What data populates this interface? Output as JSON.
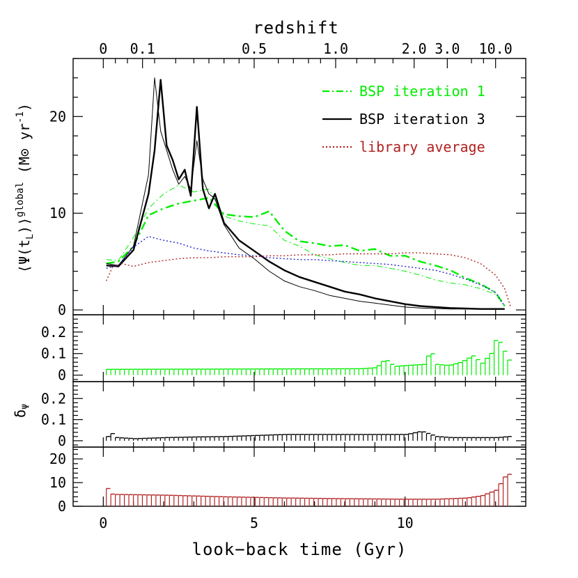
{
  "chart_data": {
    "type": "line",
    "top_axis": {
      "title": "redshift",
      "tick_labels": [
        "0",
        "0.1",
        "0.5",
        "1.0",
        "2.0",
        "3.0",
        "10.0"
      ],
      "tick_times_gyr": [
        0,
        1.3,
        5.0,
        7.7,
        10.3,
        11.4,
        13.0
      ]
    },
    "xlabel": "look−back time (Gyr)",
    "xlim": [
      -1.0,
      14.0
    ],
    "x_ticks": [
      0,
      5,
      10
    ],
    "x_tick_labels": [
      "0",
      "5",
      "10"
    ],
    "panels": [
      {
        "id": "main",
        "ylabel": "⟨Ψ(t_L)⟩^global  (M⊙ yr⁻¹)",
        "ylim": [
          -0.5,
          26
        ],
        "y_ticks": [
          0,
          10,
          20
        ],
        "y_tick_labels": [
          "0",
          "10",
          "20"
        ],
        "legend": {
          "position": "top-right",
          "entries": [
            {
              "label": "BSP iteration 1",
              "color": "#00ee00",
              "style": "dash-dot"
            },
            {
              "label": "BSP iteration 3",
              "color": "#000000",
              "style": "solid"
            },
            {
              "label": "library average",
              "color": "#b22222",
              "style": "dotted"
            }
          ]
        },
        "series": [
          {
            "name": "BSP iteration 1",
            "color": "#00ee00",
            "style": "dashdot",
            "width": 2.4,
            "x": [
              0.1,
              0.5,
              1.0,
              1.5,
              2.0,
              2.5,
              3.0,
              3.5,
              4.0,
              4.5,
              5.0,
              5.5,
              6.0,
              6.5,
              7.0,
              7.5,
              8.0,
              8.5,
              9.0,
              9.5,
              10.0,
              10.5,
              11.0,
              11.5,
              12.0,
              12.5,
              13.0,
              13.3
            ],
            "y": [
              4.8,
              5.0,
              6.6,
              9.8,
              10.5,
              11.0,
              11.3,
              11.6,
              9.9,
              9.7,
              9.6,
              10.2,
              8.2,
              7.1,
              6.9,
              6.6,
              6.7,
              6.1,
              6.3,
              5.6,
              5.6,
              5.0,
              4.6,
              4.1,
              3.3,
              2.7,
              1.8,
              0.4
            ]
          },
          {
            "name": "BSP iteration 1 (thin)",
            "color": "#00ee00",
            "style": "dashdot",
            "width": 1.0,
            "x": [
              0.1,
              0.5,
              1.0,
              1.5,
              2.0,
              2.5,
              3.0,
              3.5,
              4.0,
              4.5,
              5.0,
              5.5,
              6.0,
              6.5,
              7.0,
              7.5,
              8.0,
              8.5,
              9.0,
              9.5,
              10.0,
              10.5,
              11.0,
              11.5,
              12.0,
              12.5,
              13.0,
              13.3
            ],
            "y": [
              5.2,
              5.1,
              7.5,
              10.5,
              12.0,
              12.9,
              12.2,
              12.5,
              9.7,
              9.2,
              8.9,
              8.7,
              7.2,
              6.6,
              5.7,
              5.3,
              4.9,
              4.6,
              4.6,
              4.3,
              4.0,
              3.6,
              3.1,
              2.8,
              2.6,
              2.2,
              1.6,
              0.4
            ]
          },
          {
            "name": "BSP iteration 3",
            "color": "#000000",
            "style": "solid",
            "width": 2.4,
            "x": [
              0.1,
              0.5,
              1.0,
              1.5,
              1.7,
              1.9,
              2.1,
              2.3,
              2.5,
              2.7,
              2.9,
              3.1,
              3.3,
              3.5,
              3.7,
              4.0,
              4.5,
              5.0,
              5.5,
              6.0,
              6.5,
              7.0,
              7.5,
              8.0,
              8.5,
              9.0,
              9.5,
              10.0,
              10.5,
              11.0,
              11.5,
              12.0,
              12.5,
              13.0,
              13.3
            ],
            "y": [
              4.6,
              4.5,
              6.2,
              12.0,
              16.5,
              23.8,
              17.0,
              15.5,
              13.5,
              14.5,
              11.8,
              21.0,
              12.5,
              10.5,
              12.0,
              9.0,
              7.2,
              6.1,
              5.0,
              4.1,
              3.4,
              2.9,
              2.4,
              1.9,
              1.6,
              1.2,
              0.9,
              0.6,
              0.4,
              0.3,
              0.2,
              0.15,
              0.1,
              0.1,
              0.1
            ]
          },
          {
            "name": "BSP iteration 3 (thin)",
            "color": "#000000",
            "style": "solid",
            "width": 1.0,
            "x": [
              0.1,
              0.5,
              1.0,
              1.5,
              1.7,
              1.9,
              2.1,
              2.3,
              2.5,
              2.7,
              2.9,
              3.1,
              3.3,
              3.5,
              3.7,
              4.0,
              4.5,
              5.0,
              5.5,
              6.0,
              6.5,
              7.0,
              7.5,
              8.0,
              8.5,
              9.0,
              9.5,
              10.0,
              10.5,
              11.0,
              11.5,
              12.0,
              12.5,
              13.0,
              13.3
            ],
            "y": [
              4.8,
              4.6,
              6.6,
              14.0,
              24.0,
              18.5,
              16.5,
              14.5,
              13.0,
              13.8,
              12.5,
              17.5,
              13.5,
              12.0,
              11.5,
              8.8,
              6.4,
              5.3,
              4.0,
              3.0,
              2.4,
              2.0,
              1.5,
              1.2,
              0.9,
              0.7,
              0.5,
              0.3,
              0.2,
              0.15,
              0.1,
              0.1,
              0.1,
              0.1,
              0.1
            ]
          },
          {
            "name": "blue average",
            "color": "#2222cc",
            "style": "dotted",
            "width": 1.4,
            "x": [
              0.1,
              0.5,
              1.0,
              1.5,
              2.0,
              2.5,
              3.0,
              3.5,
              4.0,
              4.5,
              5.0,
              5.5,
              6.0,
              6.5,
              7.0,
              7.5,
              8.0,
              8.5,
              9.0,
              9.5,
              10.0,
              10.5,
              11.0,
              11.5,
              12.0,
              12.5,
              13.0,
              13.3
            ],
            "y": [
              4.3,
              4.6,
              6.5,
              7.6,
              7.2,
              6.9,
              6.4,
              6.1,
              5.9,
              5.7,
              5.6,
              5.4,
              5.3,
              5.2,
              5.2,
              5.1,
              5.0,
              4.9,
              4.8,
              4.7,
              4.5,
              4.3,
              4.1,
              3.7,
              3.2,
              2.6,
              1.8,
              0.4
            ]
          },
          {
            "name": "library average",
            "color": "#b22222",
            "style": "dotted",
            "width": 1.4,
            "x": [
              0.1,
              0.3,
              0.6,
              1.0,
              1.5,
              2.0,
              2.5,
              3.0,
              3.5,
              4.0,
              4.5,
              5.0,
              5.5,
              6.0,
              6.5,
              7.0,
              7.5,
              8.0,
              8.5,
              9.0,
              9.5,
              10.0,
              10.5,
              11.0,
              11.5,
              12.0,
              12.5,
              13.0,
              13.3,
              13.5
            ],
            "y": [
              3.0,
              4.4,
              4.8,
              4.5,
              4.9,
              5.1,
              5.3,
              5.4,
              5.4,
              5.5,
              5.5,
              5.5,
              5.6,
              5.6,
              5.7,
              5.7,
              5.7,
              5.8,
              5.8,
              5.8,
              5.8,
              5.9,
              5.9,
              5.8,
              5.7,
              5.4,
              4.8,
              3.6,
              2.2,
              0.3
            ]
          }
        ]
      },
      {
        "id": "green-errors",
        "ylim": [
          -0.03,
          0.28
        ],
        "y_ticks": [
          0,
          0.1,
          0.2
        ],
        "y_tick_labels": [
          "0",
          "0.1",
          "0.2"
        ],
        "color": "#00ee00",
        "x_range": [
          0.1,
          13.4
        ],
        "count": 90,
        "knots_x": [
          0.1,
          8.5,
          9.0,
          9.3,
          9.6,
          10.0,
          10.6,
          10.8,
          11.0,
          11.4,
          11.8,
          12.2,
          12.5,
          12.8,
          13.0,
          13.4
        ],
        "knots_y": [
          0.027,
          0.03,
          0.035,
          0.075,
          0.04,
          0.045,
          0.05,
          0.12,
          0.05,
          0.045,
          0.06,
          0.09,
          0.055,
          0.1,
          0.18,
          0.07
        ]
      },
      {
        "id": "black-errors",
        "ylabel": "δΨ",
        "ylim": [
          -0.03,
          0.28
        ],
        "y_ticks": [
          0,
          0.1,
          0.2
        ],
        "y_tick_labels": [
          "0",
          "0.1",
          "0.2"
        ],
        "color": "#000000",
        "x_range": [
          0.1,
          13.4
        ],
        "count": 90,
        "knots_x": [
          0.1,
          0.2,
          0.4,
          1.0,
          2.0,
          3.0,
          4.0,
          5.0,
          6.0,
          7.0,
          8.0,
          9.0,
          10.0,
          10.5,
          11.0,
          11.5,
          12.0,
          13.0,
          13.4
        ],
        "knots_y": [
          0.02,
          0.04,
          0.015,
          0.01,
          0.015,
          0.018,
          0.02,
          0.025,
          0.03,
          0.03,
          0.03,
          0.03,
          0.03,
          0.045,
          0.02,
          0.015,
          0.015,
          0.015,
          0.02
        ]
      },
      {
        "id": "red-errors",
        "ylim": [
          0,
          25
        ],
        "y_ticks": [
          0,
          10,
          20
        ],
        "y_tick_labels": [
          "0",
          "10",
          "20"
        ],
        "color": "#b22222",
        "x_range": [
          0.1,
          13.4
        ],
        "count": 90,
        "knots_x": [
          0.1,
          0.2,
          0.4,
          2.0,
          4.0,
          6.0,
          8.0,
          10.0,
          11.0,
          12.0,
          12.5,
          12.8,
          13.0,
          13.2,
          13.4
        ],
        "knots_y": [
          7.5,
          5.2,
          5.0,
          4.7,
          4.0,
          3.5,
          3.2,
          3.0,
          3.0,
          3.5,
          4.5,
          6.0,
          7.0,
          12.0,
          13.5
        ]
      }
    ]
  }
}
